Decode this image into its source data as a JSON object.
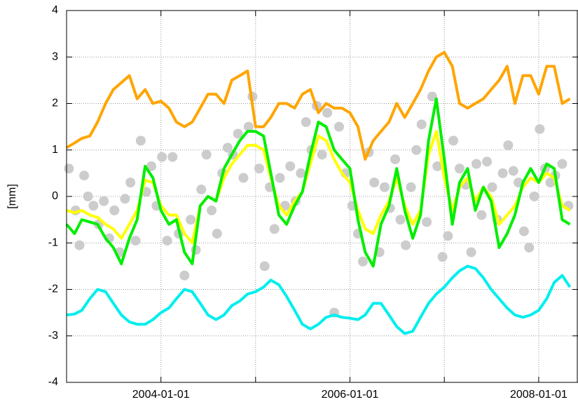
{
  "chart_data": {
    "type": "line",
    "ylabel": "[mm]",
    "xlim": [
      "2003-01-01",
      "2008-06-01"
    ],
    "xticks": [
      "2004-01-01",
      "2005-01-01",
      "2006-01-01",
      "2007-01-01",
      "2008-01-01"
    ],
    "xtick_label_step": 2,
    "ylim": [
      -4,
      4
    ],
    "yticks": [
      -4,
      -3,
      -2,
      -1,
      0,
      1,
      2,
      3,
      4
    ],
    "grid": true,
    "x": [
      "2003-01-01",
      "2003-02-01",
      "2003-03-01",
      "2003-04-01",
      "2003-05-01",
      "2003-06-01",
      "2003-07-01",
      "2003-08-01",
      "2003-09-01",
      "2003-10-01",
      "2003-11-01",
      "2003-12-01",
      "2004-01-01",
      "2004-02-01",
      "2004-03-01",
      "2004-04-01",
      "2004-05-01",
      "2004-06-01",
      "2004-07-01",
      "2004-08-01",
      "2004-09-01",
      "2004-10-01",
      "2004-11-01",
      "2004-12-01",
      "2005-01-01",
      "2005-02-01",
      "2005-03-01",
      "2005-04-01",
      "2005-05-01",
      "2005-06-01",
      "2005-07-01",
      "2005-08-01",
      "2005-09-01",
      "2005-10-01",
      "2005-11-01",
      "2005-12-01",
      "2006-01-01",
      "2006-02-01",
      "2006-03-01",
      "2006-04-01",
      "2006-05-01",
      "2006-06-01",
      "2006-07-01",
      "2006-08-01",
      "2006-09-01",
      "2006-10-01",
      "2006-11-01",
      "2006-12-01",
      "2007-01-01",
      "2007-02-01",
      "2007-03-01",
      "2007-04-01",
      "2007-05-01",
      "2007-06-01",
      "2007-07-01",
      "2007-08-01",
      "2007-09-01",
      "2007-10-01",
      "2007-11-01",
      "2007-12-01",
      "2008-01-01",
      "2008-02-01",
      "2008-03-01",
      "2008-04-01",
      "2008-05-01"
    ],
    "scatter": {
      "color": "#cccccc",
      "x": [
        "2003-01-10",
        "2003-02-05",
        "2003-02-20",
        "2003-03-10",
        "2003-03-25",
        "2003-04-15",
        "2003-05-05",
        "2003-05-25",
        "2003-06-15",
        "2003-07-05",
        "2003-07-25",
        "2003-08-15",
        "2003-09-05",
        "2003-09-25",
        "2003-10-15",
        "2003-11-05",
        "2003-11-25",
        "2003-12-15",
        "2004-01-05",
        "2004-01-25",
        "2004-02-15",
        "2004-03-10",
        "2004-04-01",
        "2004-04-25",
        "2004-05-15",
        "2004-06-05",
        "2004-06-25",
        "2004-07-15",
        "2004-08-05",
        "2004-08-25",
        "2004-09-15",
        "2004-10-05",
        "2004-10-25",
        "2004-11-15",
        "2004-12-05",
        "2004-12-20",
        "2005-01-15",
        "2005-02-05",
        "2005-02-25",
        "2005-03-15",
        "2005-04-05",
        "2005-04-25",
        "2005-05-15",
        "2005-06-05",
        "2005-06-25",
        "2005-07-15",
        "2005-08-05",
        "2005-08-25",
        "2005-09-15",
        "2005-10-05",
        "2005-11-01",
        "2005-11-20",
        "2005-12-15",
        "2006-01-10",
        "2006-02-01",
        "2006-02-20",
        "2006-03-15",
        "2006-04-05",
        "2006-04-25",
        "2006-05-15",
        "2006-06-05",
        "2006-06-25",
        "2006-07-15",
        "2006-08-05",
        "2006-08-25",
        "2006-09-15",
        "2006-10-05",
        "2006-10-25",
        "2006-11-15",
        "2006-12-05",
        "2006-12-25",
        "2007-01-15",
        "2007-02-05",
        "2007-03-01",
        "2007-03-25",
        "2007-04-15",
        "2007-05-05",
        "2007-05-25",
        "2007-06-15",
        "2007-07-05",
        "2007-07-25",
        "2007-08-15",
        "2007-09-05",
        "2007-09-25",
        "2007-10-15",
        "2007-11-05",
        "2007-11-25",
        "2007-12-15",
        "2008-01-05",
        "2008-01-25",
        "2008-02-15",
        "2008-03-05",
        "2008-04-01",
        "2008-04-25"
      ],
      "values": [
        0.6,
        -0.3,
        -1.05,
        0.45,
        0.0,
        -0.2,
        -0.6,
        -0.1,
        -0.9,
        -0.3,
        -1.2,
        -0.05,
        0.3,
        -0.95,
        1.2,
        0.1,
        0.65,
        -0.2,
        0.85,
        -0.95,
        0.85,
        -0.8,
        -1.7,
        -0.5,
        -1.15,
        0.15,
        0.9,
        -0.3,
        -0.8,
        0.5,
        1.05,
        0.9,
        1.35,
        0.4,
        1.5,
        2.15,
        0.6,
        -1.5,
        0.2,
        -0.7,
        0.4,
        -0.2,
        0.65,
        -0.1,
        0.5,
        1.6,
        1.0,
        1.95,
        0.9,
        1.8,
        -2.5,
        1.5,
        0.5,
        -0.2,
        -0.8,
        -1.4,
        0.95,
        0.3,
        -1.2,
        0.2,
        -0.25,
        0.8,
        -0.5,
        -1.05,
        0.2,
        1.0,
        1.55,
        -0.55,
        2.15,
        0.65,
        -1.3,
        -0.85,
        1.2,
        0.6,
        0.25,
        -1.2,
        0.7,
        -0.4,
        0.75,
        0.2,
        -0.5,
        0.5,
        1.1,
        0.55,
        0.3,
        -0.75,
        -1.1,
        0.0,
        1.45,
        0.6,
        0.3,
        0.45,
        0.7,
        -0.2
      ]
    },
    "series": [
      {
        "color": "#ffa500",
        "values": [
          1.05,
          1.15,
          1.25,
          1.3,
          1.6,
          2.0,
          2.3,
          2.45,
          2.6,
          2.1,
          2.3,
          2.0,
          2.05,
          1.9,
          1.6,
          1.5,
          1.6,
          1.9,
          2.2,
          2.2,
          2.0,
          2.5,
          2.6,
          2.7,
          1.5,
          1.5,
          1.7,
          2.0,
          2.0,
          1.9,
          2.2,
          2.3,
          1.8,
          2.0,
          1.9,
          1.9,
          1.8,
          1.5,
          0.8,
          1.2,
          1.4,
          1.6,
          2.0,
          1.7,
          2.0,
          2.3,
          2.7,
          3.0,
          3.1,
          2.8,
          2.0,
          1.9,
          2.0,
          2.1,
          2.3,
          2.5,
          2.8,
          2.0,
          2.6,
          2.6,
          2.2,
          2.8,
          2.8,
          2.0,
          2.1
        ]
      },
      {
        "color": "#00eeee",
        "values": [
          -2.55,
          -2.53,
          -2.45,
          -2.2,
          -2.0,
          -2.05,
          -2.3,
          -2.55,
          -2.7,
          -2.75,
          -2.75,
          -2.65,
          -2.5,
          -2.4,
          -2.2,
          -2.0,
          -2.05,
          -2.3,
          -2.55,
          -2.65,
          -2.55,
          -2.35,
          -2.25,
          -2.1,
          -2.05,
          -1.95,
          -1.8,
          -1.9,
          -2.15,
          -2.45,
          -2.75,
          -2.85,
          -2.75,
          -2.6,
          -2.55,
          -2.6,
          -2.62,
          -2.65,
          -2.55,
          -2.3,
          -2.3,
          -2.55,
          -2.8,
          -2.95,
          -2.9,
          -2.6,
          -2.3,
          -2.1,
          -1.95,
          -1.75,
          -1.6,
          -1.5,
          -1.55,
          -1.75,
          -2.0,
          -2.2,
          -2.4,
          -2.55,
          -2.6,
          -2.55,
          -2.45,
          -2.2,
          -1.85,
          -1.7,
          -1.95
        ]
      },
      {
        "color": "#ffff00",
        "values": [
          -0.3,
          -0.35,
          -0.3,
          -0.4,
          -0.45,
          -0.6,
          -0.7,
          -0.9,
          -0.6,
          -0.3,
          0.35,
          0.3,
          -0.2,
          -0.4,
          -0.4,
          -0.8,
          -1.0,
          -0.2,
          0.0,
          -0.1,
          0.4,
          0.7,
          0.9,
          1.1,
          1.1,
          1.0,
          0.4,
          -0.2,
          -0.4,
          -0.1,
          0.1,
          0.7,
          1.3,
          1.2,
          0.8,
          0.5,
          0.3,
          -0.3,
          -0.7,
          -0.8,
          -0.4,
          -0.1,
          0.4,
          -0.2,
          -0.6,
          -0.3,
          0.9,
          1.4,
          0.4,
          -0.3,
          0.2,
          0.4,
          -0.1,
          0.2,
          0.0,
          -0.6,
          -0.4,
          -0.2,
          0.2,
          0.4,
          0.3,
          0.5,
          0.4,
          -0.2,
          -0.3
        ]
      },
      {
        "color": "#00ee00",
        "values": [
          -0.6,
          -0.8,
          -0.5,
          -0.55,
          -0.6,
          -0.9,
          -1.1,
          -1.45,
          -0.9,
          -0.5,
          0.65,
          0.4,
          -0.3,
          -0.6,
          -0.5,
          -1.2,
          -1.45,
          -0.2,
          0.0,
          -0.1,
          0.6,
          0.9,
          1.2,
          1.4,
          1.4,
          1.3,
          0.5,
          -0.4,
          -0.6,
          -0.2,
          0.1,
          0.9,
          1.6,
          1.5,
          1.0,
          0.8,
          0.6,
          -0.5,
          -1.2,
          -1.5,
          -0.6,
          -0.2,
          0.6,
          -0.3,
          -0.9,
          -0.4,
          1.2,
          2.1,
          0.8,
          -0.6,
          0.3,
          0.6,
          -0.3,
          0.2,
          -0.1,
          -1.1,
          -0.8,
          -0.4,
          0.3,
          0.6,
          0.3,
          0.7,
          0.6,
          -0.5,
          -0.6
        ]
      }
    ]
  }
}
